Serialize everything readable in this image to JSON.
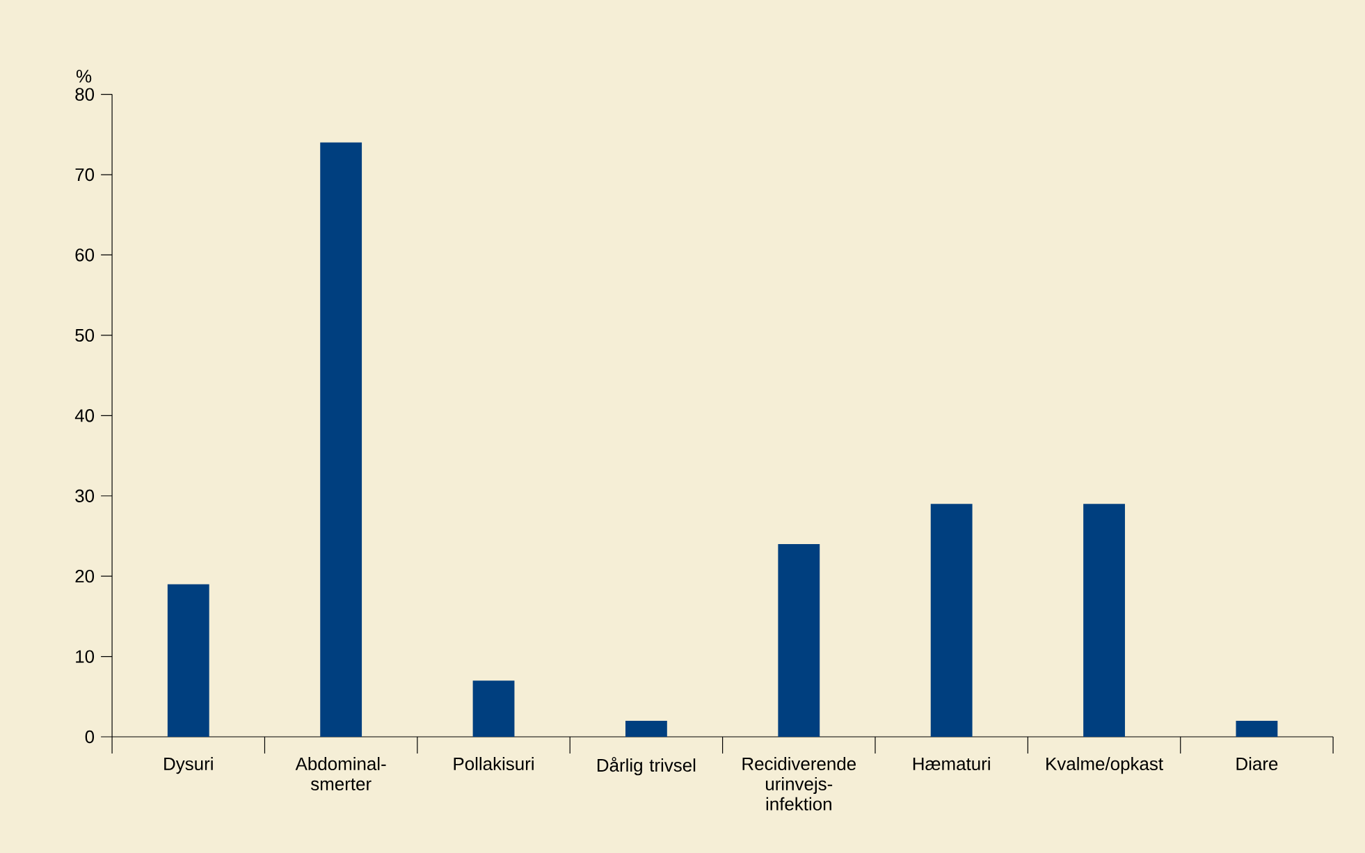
{
  "chart_data": {
    "type": "bar",
    "ylabel": "%",
    "categories": [
      "Dysuri",
      "Abdominal-smerter",
      "Pollakisuri",
      "Dårlig trivsel",
      "Recidiverende urinvejs-infektion",
      "Hæmaturi",
      "Kvalme/opkast",
      "Diare"
    ],
    "values": [
      19,
      74,
      7,
      2,
      24,
      29,
      29,
      2
    ],
    "color": "#003f7f",
    "ylim": [
      0,
      80
    ],
    "yticks": [
      0,
      10,
      20,
      30,
      40,
      50,
      60,
      70,
      80
    ],
    "grid": false
  }
}
